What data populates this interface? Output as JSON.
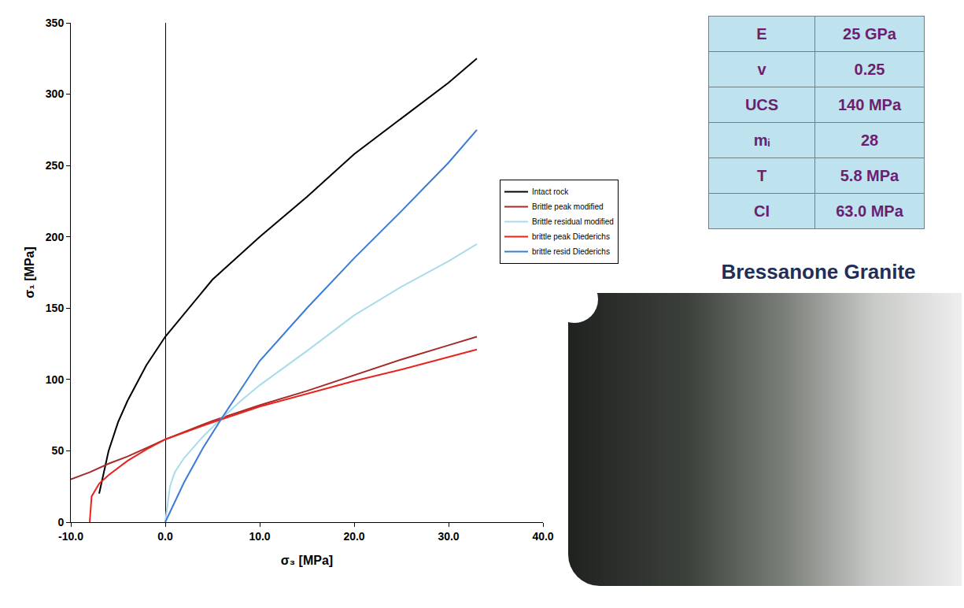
{
  "chart_data": {
    "type": "line",
    "x_label": "σ₃ [MPa]",
    "y_label": "σ₁ [MPa]",
    "xlim": [
      -10,
      40
    ],
    "xticks": [
      {
        "value": -10,
        "label": "-10.0"
      },
      {
        "value": 0,
        "label": "0.0"
      },
      {
        "value": 10,
        "label": "10.0"
      },
      {
        "value": 20,
        "label": "20.0"
      },
      {
        "value": 30,
        "label": "30.0"
      },
      {
        "value": 40,
        "label": "40.0"
      }
    ],
    "ylim": [
      0,
      350
    ],
    "yticks": [
      0,
      50,
      100,
      150,
      200,
      250,
      300,
      350
    ],
    "grid": false,
    "legend": "right",
    "series": [
      {
        "name": "Intact rock",
        "color": "#000000",
        "x": [
          -7,
          -6,
          -5,
          -4,
          -2,
          0,
          5,
          10,
          15,
          20,
          25,
          30,
          33
        ],
        "values": [
          20,
          50,
          70,
          85,
          110,
          130,
          170,
          200,
          228,
          258,
          283,
          308,
          325
        ]
      },
      {
        "name": "Brittle peak modified",
        "color": "#a52a2a",
        "x": [
          -10,
          -8,
          -6,
          -4,
          -2,
          0,
          5,
          10,
          15,
          20,
          25,
          30,
          33
        ],
        "values": [
          30,
          35,
          41,
          46,
          52,
          58,
          71,
          82,
          92,
          103,
          114,
          124,
          130
        ]
      },
      {
        "name": "Brittle residual modified",
        "color": "#a8dcea",
        "x": [
          0,
          0.5,
          1,
          2,
          4,
          6,
          8,
          10,
          15,
          20,
          25,
          30,
          33
        ],
        "values": [
          0,
          25,
          35,
          45,
          60,
          73,
          85,
          96,
          120,
          145,
          165,
          183,
          195
        ]
      },
      {
        "name": "brittle peak Diederichs",
        "color": "#e8231e",
        "x": [
          -8,
          -7.8,
          -7,
          -6,
          -4,
          -2,
          0,
          5,
          10,
          15,
          20,
          25,
          30,
          33
        ],
        "values": [
          0,
          18,
          27,
          33,
          43,
          51,
          58,
          70,
          81,
          90,
          99,
          107,
          116,
          121
        ]
      },
      {
        "name": "brittle resid Diederichs",
        "color": "#3a7bd5",
        "x": [
          0,
          1,
          2,
          4,
          6,
          8,
          10,
          15,
          20,
          25,
          30,
          33
        ],
        "values": [
          0,
          14,
          28,
          52,
          73,
          93,
          113,
          150,
          185,
          218,
          252,
          275
        ]
      }
    ]
  },
  "table": {
    "rows": [
      [
        "E",
        "25 GPa"
      ],
      [
        "v",
        "0.25"
      ],
      [
        "UCS",
        "140 MPa"
      ],
      [
        "mᵢ",
        "28"
      ],
      [
        "T",
        "5.8 MPa"
      ],
      [
        "CI",
        "63.0 MPa"
      ]
    ]
  },
  "photo_caption": "Bressanone Granite"
}
